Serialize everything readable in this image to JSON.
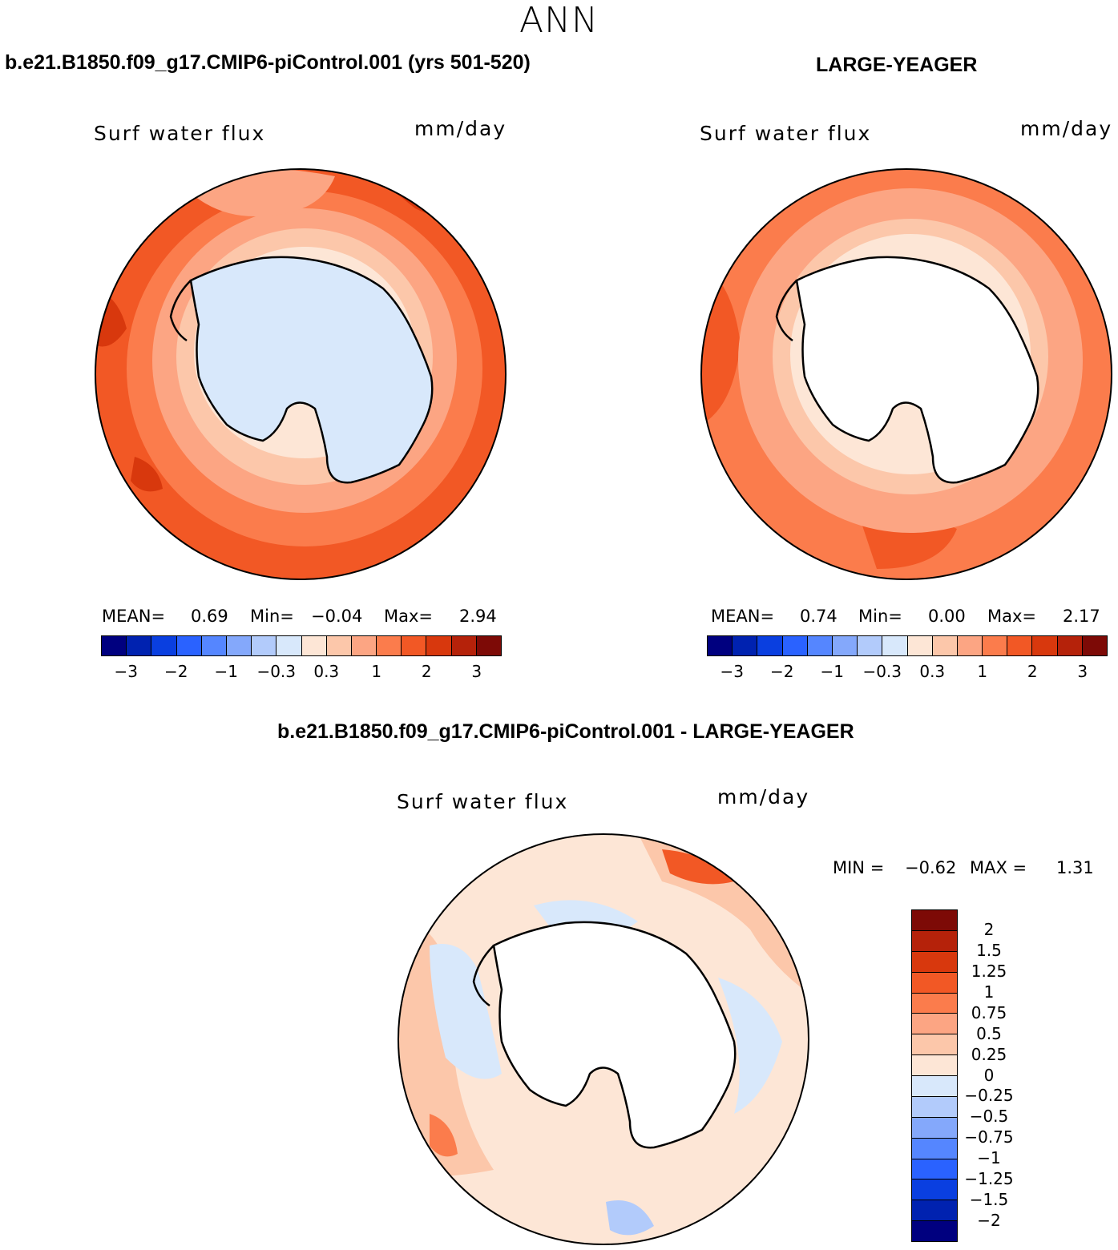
{
  "title": "ANN",
  "colors": {
    "diverging16": [
      "#00007f",
      "#0022b0",
      "#0a3fe0",
      "#2a62ff",
      "#5586ff",
      "#84a8fb",
      "#b2cbfb",
      "#d8e8fb",
      "#fde6d6",
      "#fcc7aa",
      "#fca583",
      "#fb7c4c",
      "#f25825",
      "#d8380d",
      "#b5220a",
      "#7d0a06"
    ],
    "diff16": [
      "#7d0a06",
      "#b5220a",
      "#d8380d",
      "#f25825",
      "#fb7c4c",
      "#fca583",
      "#fcc7aa",
      "#fde6d6",
      "#d8e8fb",
      "#b2cbfb",
      "#84a8fb",
      "#5586ff",
      "#2a62ff",
      "#0a3fe0",
      "#0022b0",
      "#00007f"
    ]
  },
  "panels": {
    "left": {
      "case": "b.e21.B1850.f09_g17.CMIP6-piControl.001 (yrs 501-520)",
      "variable": "Surf  water  flux",
      "units": "mm/day",
      "stats": {
        "mean_label": "MEAN=",
        "mean": "0.69",
        "min_label": "Min=",
        "min": "−0.04",
        "max_label": "Max=",
        "max": "2.94"
      },
      "colorbar_ticks": [
        "−3",
        "−2",
        "−1",
        "−0.3",
        "0.3",
        "1",
        "2",
        "3"
      ]
    },
    "right": {
      "case": "LARGE-YEAGER",
      "variable": "Surf  water  flux",
      "units": "mm/day",
      "stats": {
        "mean_label": "MEAN=",
        "mean": "0.74",
        "min_label": "Min=",
        "min": "0.00",
        "max_label": "Max=",
        "max": "2.17"
      },
      "colorbar_ticks": [
        "−3",
        "−2",
        "−1",
        "−0.3",
        "0.3",
        "1",
        "2",
        "3"
      ]
    },
    "diff": {
      "case": "b.e21.B1850.f09_g17.CMIP6-piControl.001 - LARGE-YEAGER",
      "variable": "Surf  water  flux",
      "units": "mm/day",
      "stats": {
        "min_label": "MIN =",
        "min": "−0.62",
        "max_label": "MAX =",
        "max": "1.31"
      },
      "colorbar_ticks": [
        "2",
        "1.5",
        "1.25",
        "1",
        "0.75",
        "0.5",
        "0.25",
        "0",
        "−0.25",
        "−0.5",
        "−0.75",
        "−1",
        "−1.25",
        "−1.5",
        "−2"
      ]
    }
  }
}
